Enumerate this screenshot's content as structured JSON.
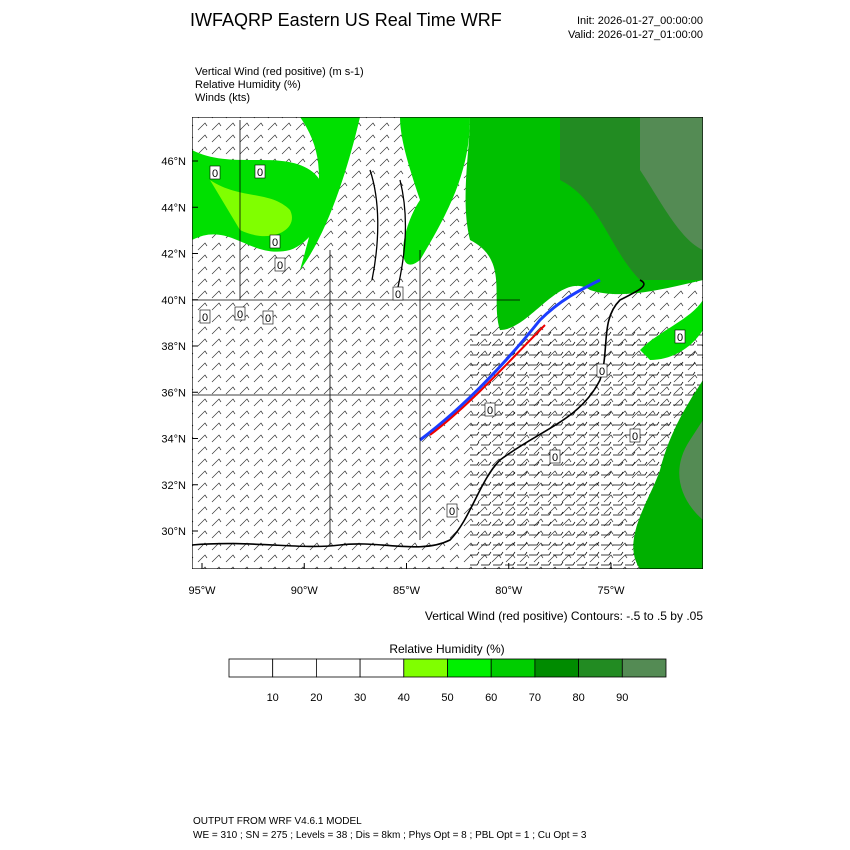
{
  "header": {
    "title": "IWFAQRP Eastern US Real Time WRF",
    "init": "Init: 2026-01-27_00:00:00",
    "valid": "Valid: 2026-01-27_01:00:00"
  },
  "fields": [
    "Vertical Wind (red positive)   (m s-1)",
    "Relative Humidity   (%)",
    "Winds   (kts)"
  ],
  "map": {
    "lat_labels": [
      "46°N",
      "44°N",
      "42°N",
      "40°N",
      "38°N",
      "36°N",
      "34°N",
      "32°N",
      "30°N"
    ],
    "lon_labels": [
      "95°W",
      "90°W",
      "85°W",
      "80°W",
      "75°W"
    ],
    "contour_labels": [
      "0",
      "0",
      "0",
      "0",
      "0",
      "0",
      "0",
      "0",
      "0",
      "0",
      "0",
      "0",
      "0",
      "0"
    ],
    "contour_note": "Vertical Wind (red positive) Contours: -.5 to .5 by .05"
  },
  "colorbar": {
    "title": "Relative Humidity  (%)",
    "colors": [
      "#ffffff",
      "#ffffff",
      "#ffffff",
      "#ffffff",
      "#80ff00",
      "#00f000",
      "#00cd00",
      "#008b00",
      "#228b22",
      "#548b54"
    ],
    "labels": [
      "10",
      "20",
      "30",
      "40",
      "50",
      "60",
      "70",
      "80",
      "90"
    ]
  },
  "footer": {
    "line1": "OUTPUT FROM WRF V4.6.1 MODEL",
    "line2": "WE = 310 ; SN = 275 ; Levels = 38 ; Dis = 8km ; Phys Opt = 8 ; PBL Opt = 1 ; Cu Opt = 3"
  }
}
